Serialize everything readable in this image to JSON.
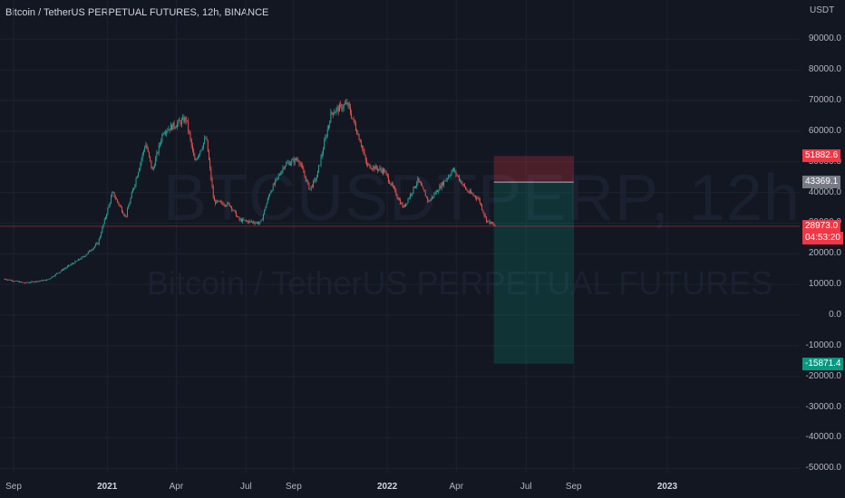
{
  "header": {
    "title": "Bitcoin / TetherUS PERPETUAL FUTURES, 12h, BINANCE"
  },
  "watermark": {
    "symbol": "BTCUSDTPERP, 12h",
    "description": "Bitcoin / TetherUS PERPETUAL FUTURES"
  },
  "price_axis": {
    "unit": "USDT",
    "ticks": [
      "90000.0",
      "80000.0",
      "70000.0",
      "60000.0",
      "50000.0",
      "40000.0",
      "30000.0",
      "20000.0",
      "10000.0",
      "0.0",
      "-10000.0",
      "-20000.0",
      "-30000.0",
      "-40000.0",
      "-50000.0"
    ]
  },
  "time_axis": {
    "ticks": [
      {
        "label": "Sep",
        "bold": false
      },
      {
        "label": "2021",
        "bold": true
      },
      {
        "label": "Apr",
        "bold": false
      },
      {
        "label": "Jul",
        "bold": false
      },
      {
        "label": "Sep",
        "bold": false
      },
      {
        "label": "2022",
        "bold": true
      },
      {
        "label": "Apr",
        "bold": false
      },
      {
        "label": "Jul",
        "bold": false
      },
      {
        "label": "Sep",
        "bold": false
      },
      {
        "label": "2023",
        "bold": true
      }
    ]
  },
  "price_tags": {
    "stop_loss": {
      "label": "51882.6",
      "color": "#f23645"
    },
    "entry": {
      "label": "43369.1",
      "color": "#787b86"
    },
    "last_price": {
      "label": "28973.0",
      "color": "#f23645"
    },
    "countdown": {
      "label": "04:53:20",
      "color": "#f23645"
    },
    "target": {
      "label": "-15871.4",
      "color": "#089981"
    }
  },
  "position_tool": {
    "type": "short",
    "stop": 51882.6,
    "entry": 43369.1,
    "target": -15871.4,
    "risk_color": "#f23645",
    "reward_color": "#089981"
  },
  "colors": {
    "background": "#131722",
    "up_candle": "#26a69a",
    "down_candle": "#ef5350",
    "last_price_line": "#f23645"
  },
  "chart_data": {
    "type": "candlestick",
    "symbol": "BTCUSDT",
    "ylim": [
      -50000,
      90000
    ],
    "price_path": [
      {
        "t": "2020-08-20",
        "p": 11800
      },
      {
        "t": "2020-09-15",
        "p": 10500
      },
      {
        "t": "2020-10-15",
        "p": 11500
      },
      {
        "t": "2020-11-05",
        "p": 15000
      },
      {
        "t": "2020-12-01",
        "p": 19000
      },
      {
        "t": "2020-12-20",
        "p": 23500
      },
      {
        "t": "2021-01-08",
        "p": 40000
      },
      {
        "t": "2021-01-25",
        "p": 32000
      },
      {
        "t": "2021-02-20",
        "p": 56000
      },
      {
        "t": "2021-03-01",
        "p": 47000
      },
      {
        "t": "2021-03-15",
        "p": 60000
      },
      {
        "t": "2021-04-14",
        "p": 64000
      },
      {
        "t": "2021-04-25",
        "p": 50000
      },
      {
        "t": "2021-05-10",
        "p": 58000
      },
      {
        "t": "2021-05-20",
        "p": 37000
      },
      {
        "t": "2021-06-10",
        "p": 36000
      },
      {
        "t": "2021-06-22",
        "p": 31000
      },
      {
        "t": "2021-07-20",
        "p": 30000
      },
      {
        "t": "2021-08-01",
        "p": 40000
      },
      {
        "t": "2021-08-20",
        "p": 49000
      },
      {
        "t": "2021-09-07",
        "p": 51000
      },
      {
        "t": "2021-09-22",
        "p": 41000
      },
      {
        "t": "2021-10-01",
        "p": 45000
      },
      {
        "t": "2021-10-20",
        "p": 66000
      },
      {
        "t": "2021-11-10",
        "p": 69000
      },
      {
        "t": "2021-11-28",
        "p": 56000
      },
      {
        "t": "2021-12-05",
        "p": 49000
      },
      {
        "t": "2021-12-28",
        "p": 47000
      },
      {
        "t": "2022-01-22",
        "p": 35000
      },
      {
        "t": "2022-02-10",
        "p": 44000
      },
      {
        "t": "2022-02-24",
        "p": 37000
      },
      {
        "t": "2022-03-28",
        "p": 47500
      },
      {
        "t": "2022-04-15",
        "p": 40500
      },
      {
        "t": "2022-04-30",
        "p": 38000
      },
      {
        "t": "2022-05-10",
        "p": 31000
      },
      {
        "t": "2022-05-22",
        "p": 28973
      }
    ]
  }
}
